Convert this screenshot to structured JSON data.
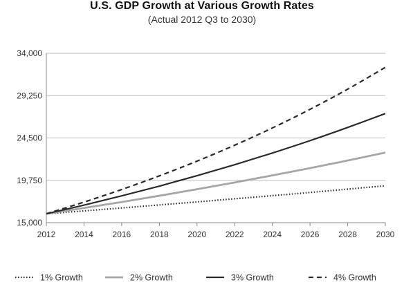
{
  "chart_data": {
    "type": "line",
    "title": "U.S. GDP Growth at Various Growth Rates",
    "subtitle": "(Actual 2012 Q3 to 2030)",
    "xlabel": "",
    "ylabel": "",
    "xlim": [
      2012,
      2030
    ],
    "ylim": [
      15000,
      34000
    ],
    "x_ticks": [
      "2012",
      "2014",
      "2016",
      "2018",
      "2020",
      "2022",
      "2024",
      "2026",
      "2028",
      "2030"
    ],
    "y_ticks": [
      "15,000",
      "19,750",
      "24,500",
      "29,250",
      "34,000"
    ],
    "grid": "horizontal",
    "legend_position": "bottom",
    "series": [
      {
        "name": "1% Growth",
        "line_style": "dotted",
        "x": [
          2012,
          2014,
          2016,
          2018,
          2020,
          2022,
          2024,
          2026,
          2028,
          2030
        ],
        "values": [
          16000,
          16320,
          16650,
          16990,
          17330,
          17680,
          18030,
          18390,
          18760,
          19140
        ]
      },
      {
        "name": "2% Growth",
        "line_style": "solid-gray",
        "x": [
          2012,
          2014,
          2016,
          2018,
          2020,
          2022,
          2024,
          2026,
          2028,
          2030
        ],
        "values": [
          16000,
          16650,
          17320,
          18020,
          18750,
          19510,
          20300,
          21120,
          21970,
          22860
        ]
      },
      {
        "name": "3% Growth",
        "line_style": "solid-dark",
        "x": [
          2012,
          2014,
          2016,
          2018,
          2020,
          2022,
          2024,
          2026,
          2028,
          2030
        ],
        "values": [
          16000,
          16970,
          18010,
          19100,
          20270,
          21500,
          22810,
          24200,
          25680,
          27240
        ]
      },
      {
        "name": "4% Growth",
        "line_style": "dashed",
        "x": [
          2012,
          2014,
          2016,
          2018,
          2020,
          2022,
          2024,
          2026,
          2028,
          2030
        ],
        "values": [
          16000,
          17310,
          18720,
          20250,
          21900,
          23690,
          25620,
          27710,
          29970,
          32420
        ]
      }
    ],
    "colors": {
      "series_dark": "#2a2a2a",
      "series_gray": "#a6a6a6",
      "grid": "#bdbdbd",
      "axis": "#888888"
    }
  }
}
